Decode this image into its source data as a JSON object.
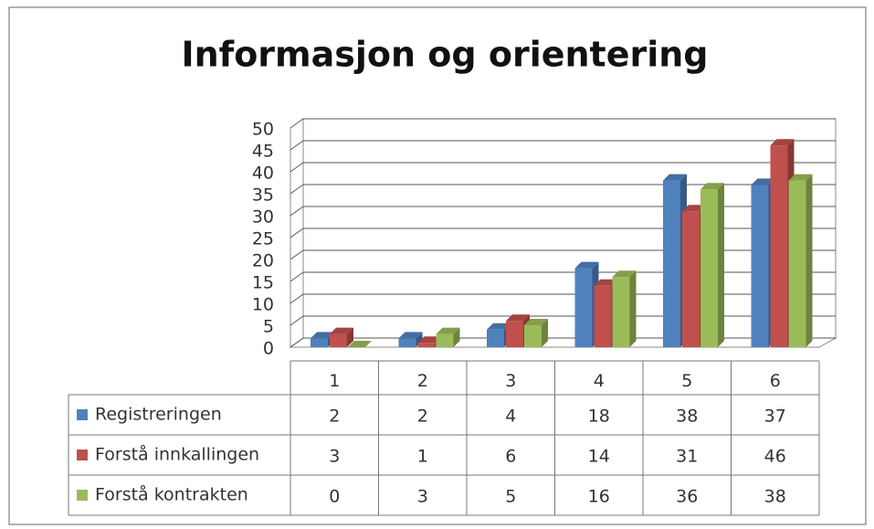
{
  "chart_data": {
    "type": "bar",
    "title": "Informasjon og orientering",
    "categories": [
      "1",
      "2",
      "3",
      "4",
      "5",
      "6"
    ],
    "series": [
      {
        "name": "Registreringen",
        "color": "#4f81bd",
        "values": [
          2,
          2,
          4,
          18,
          38,
          37
        ]
      },
      {
        "name": "Forstå innkallingen",
        "color": "#c0504d",
        "values": [
          3,
          1,
          6,
          14,
          31,
          46
        ]
      },
      {
        "name": "Forstå kontrakten",
        "color": "#9bbb59",
        "values": [
          0,
          3,
          5,
          16,
          36,
          38
        ]
      }
    ],
    "ylim": [
      0,
      50
    ],
    "yticks": [
      0,
      5,
      10,
      15,
      20,
      25,
      30,
      35,
      40,
      45,
      50
    ],
    "grid": true,
    "legend": "table"
  }
}
